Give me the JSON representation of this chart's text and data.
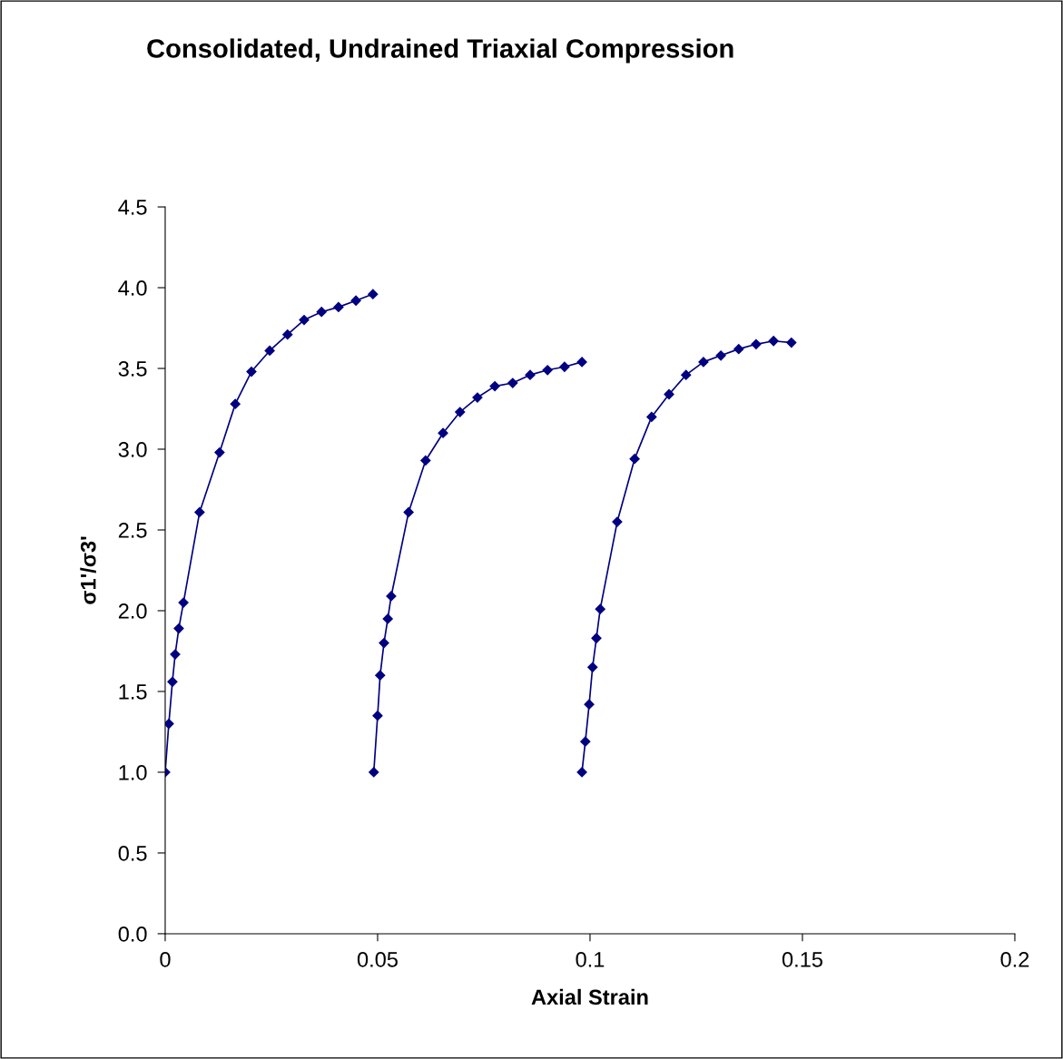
{
  "chart_data": {
    "type": "line",
    "title": "Consolidated, Undrained Triaxial Compression",
    "xlabel": "Axial Strain",
    "ylabel": "σ1'/σ3'",
    "marker": "diamond",
    "line_style": "solid",
    "grid": false,
    "xlim": [
      0,
      0.2
    ],
    "xticks": [
      0,
      0.05,
      0.1,
      0.15,
      0.2
    ],
    "ylim": [
      0,
      4.5
    ],
    "yticks": [
      {
        "value": 0,
        "label": "0.0"
      },
      {
        "value": 0.5,
        "label": "0.5"
      },
      {
        "value": 1,
        "label": "1.0"
      },
      {
        "value": 1.5,
        "label": "1.5"
      },
      {
        "value": 2,
        "label": "2.0"
      },
      {
        "value": 2.5,
        "label": "2.5"
      },
      {
        "value": 3,
        "label": "3.0"
      },
      {
        "value": 3.5,
        "label": "3.5"
      },
      {
        "value": 4,
        "label": "4.0"
      },
      {
        "value": 4.5,
        "label": "4.5"
      }
    ],
    "series": [
      {
        "color": "#000080",
        "x": [
          0,
          0.00085,
          0.0017,
          0.00235,
          0.0032,
          0.0043,
          0.0081,
          0.0128,
          0.0165,
          0.0203,
          0.0246,
          0.0288,
          0.0327,
          0.0368,
          0.0408,
          0.0449,
          0.0489
        ],
        "values": [
          1.0,
          1.3,
          1.56,
          1.73,
          1.89,
          2.05,
          2.61,
          2.98,
          3.28,
          3.48,
          3.61,
          3.71,
          3.8,
          3.85,
          3.88,
          3.92,
          3.96
        ]
      },
      {
        "color": "#000080",
        "x": [
          0.0491,
          0.05,
          0.0506,
          0.0515,
          0.0524,
          0.0532,
          0.0573,
          0.0613,
          0.0654,
          0.0694,
          0.0735,
          0.0776,
          0.0818,
          0.0859,
          0.09,
          0.094,
          0.0981
        ],
        "values": [
          1.0,
          1.35,
          1.6,
          1.8,
          1.95,
          2.09,
          2.61,
          2.93,
          3.1,
          3.23,
          3.32,
          3.39,
          3.41,
          3.46,
          3.49,
          3.51,
          3.54
        ]
      },
      {
        "color": "#000080",
        "x": [
          0.0981,
          0.0989,
          0.0998,
          0.1006,
          0.1015,
          0.1024,
          0.1064,
          0.1105,
          0.1145,
          0.1186,
          0.1226,
          0.1267,
          0.1308,
          0.135,
          0.1391,
          0.1432,
          0.1474
        ],
        "values": [
          1.0,
          1.19,
          1.42,
          1.65,
          1.83,
          2.01,
          2.55,
          2.94,
          3.2,
          3.34,
          3.46,
          3.54,
          3.58,
          3.62,
          3.65,
          3.67,
          3.66
        ]
      }
    ]
  }
}
